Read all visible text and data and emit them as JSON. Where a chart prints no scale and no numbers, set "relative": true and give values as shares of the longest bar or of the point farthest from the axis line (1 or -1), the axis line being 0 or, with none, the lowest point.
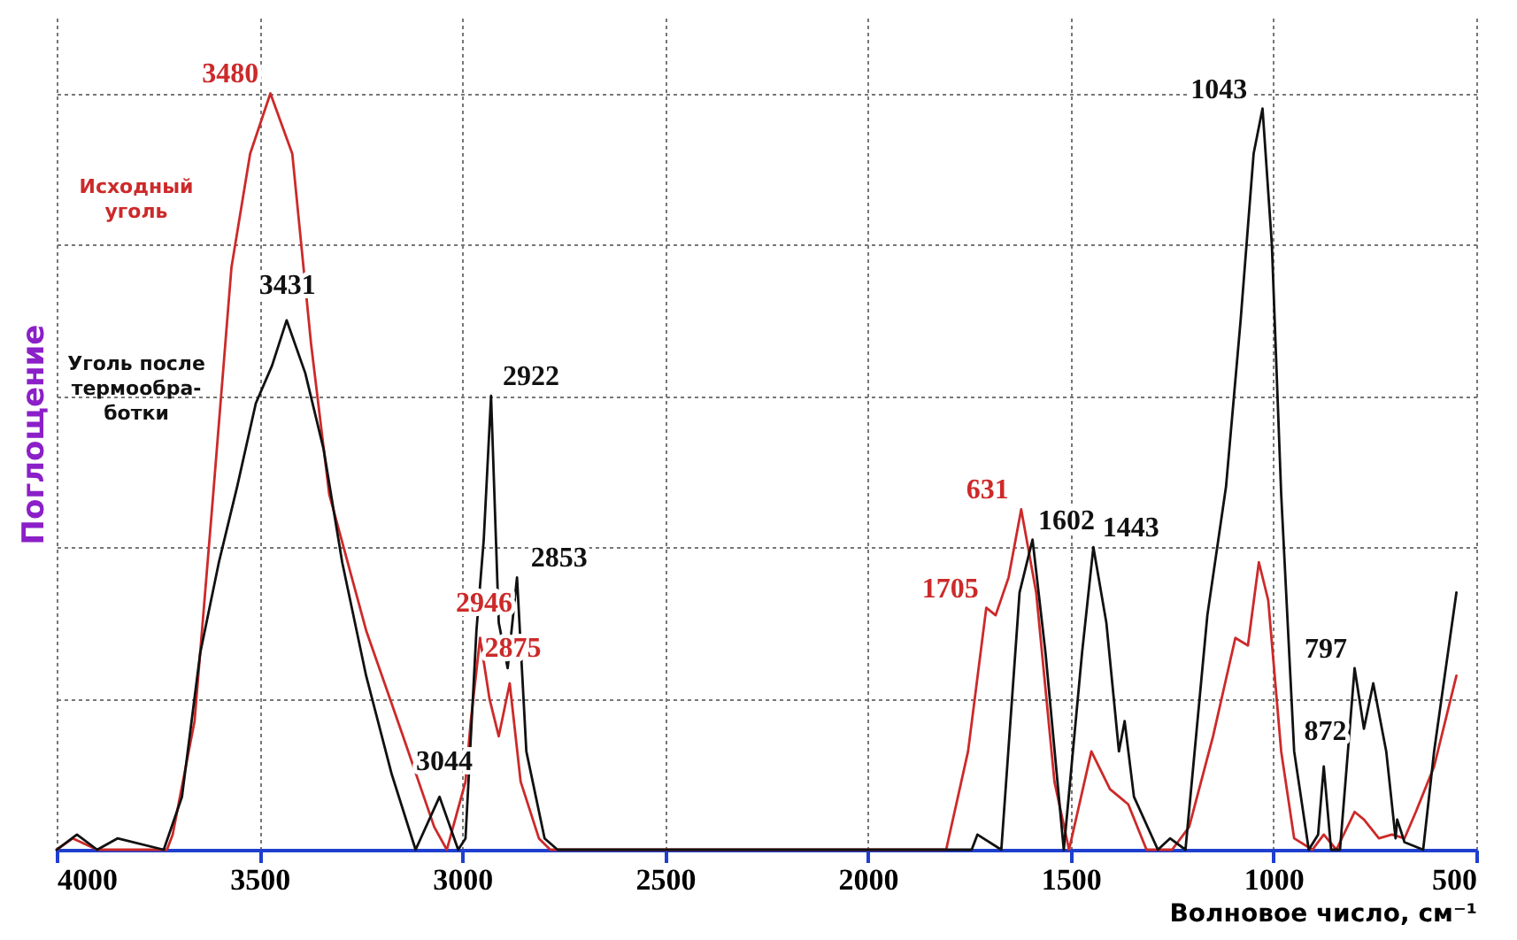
{
  "chart_data": {
    "type": "line",
    "relative": true,
    "xlabel": "Волновое число, см⁻¹",
    "ylabel": "Поглощение",
    "xlim": [
      4000,
      500
    ],
    "xticks": [
      4000,
      3500,
      3000,
      2500,
      2000,
      1500,
      1000,
      500
    ],
    "grid": true,
    "legend": false,
    "series": [
      {
        "name": "Исходный уголь",
        "color": "#cc2a2a",
        "x": [
          4000,
          3960,
          3900,
          3728,
          3714,
          3660,
          3614,
          3569,
          3523,
          3473,
          3419,
          3373,
          3328,
          3237,
          3146,
          3069,
          3038,
          2992,
          2979,
          2956,
          2933,
          2910,
          2883,
          2856,
          2811,
          2783,
          2500,
          1807,
          1753,
          1708,
          1685,
          1653,
          1622,
          1585,
          1540,
          1504,
          1449,
          1403,
          1358,
          1313,
          1250,
          1208,
          1149,
          1094,
          1063,
          1036,
          1013,
          981,
          949,
          904,
          876,
          845,
          800,
          777,
          740,
          708,
          677,
          649,
          604,
          549
        ],
        "values": [
          0,
          0.015,
          0,
          0,
          0.02,
          0.17,
          0.47,
          0.77,
          0.92,
          1.0,
          0.92,
          0.67,
          0.47,
          0.29,
          0.15,
          0.03,
          0,
          0.09,
          0.17,
          0.28,
          0.2,
          0.15,
          0.22,
          0.09,
          0.015,
          0,
          0,
          0,
          0.13,
          0.32,
          0.31,
          0.36,
          0.45,
          0.34,
          0.09,
          0,
          0.13,
          0.08,
          0.06,
          0,
          0,
          0.03,
          0.15,
          0.28,
          0.27,
          0.38,
          0.33,
          0.13,
          0.015,
          0,
          0.02,
          0,
          0.05,
          0.04,
          0.015,
          0.02,
          0.015,
          0.05,
          0.11,
          0.23
        ]
      },
      {
        "name": "Уголь после термообра-ботки",
        "color": "#111111",
        "x": [
          4000,
          3950,
          3900,
          3850,
          3736,
          3691,
          3646,
          3600,
          3555,
          3509,
          3469,
          3433,
          3387,
          3342,
          3296,
          3237,
          3174,
          3115,
          3056,
          3010,
          2992,
          2965,
          2947,
          2929,
          2910,
          2888,
          2865,
          2842,
          2797,
          2765,
          1744,
          1730,
          1671,
          1626,
          1594,
          1562,
          1517,
          1472,
          1444,
          1412,
          1381,
          1367,
          1344,
          1285,
          1255,
          1217,
          1163,
          1117,
          1081,
          1049,
          1027,
          1004,
          981,
          949,
          913,
          890,
          876,
          858,
          836,
          800,
          777,
          754,
          722,
          699,
          695,
          677,
          631,
          604,
          549
        ],
        "values": [
          0,
          0.02,
          0,
          0.015,
          0,
          0.07,
          0.26,
          0.38,
          0.48,
          0.59,
          0.64,
          0.7,
          0.63,
          0.53,
          0.38,
          0.23,
          0.1,
          0,
          0.07,
          0,
          0.015,
          0.29,
          0.41,
          0.6,
          0.3,
          0.24,
          0.36,
          0.13,
          0.015,
          0,
          0,
          0.02,
          0,
          0.34,
          0.41,
          0.26,
          0,
          0.26,
          0.4,
          0.3,
          0.13,
          0.17,
          0.07,
          0,
          0.015,
          0,
          0.31,
          0.48,
          0.7,
          0.92,
          0.98,
          0.8,
          0.47,
          0.13,
          0,
          0.02,
          0.11,
          0,
          0,
          0.24,
          0.16,
          0.22,
          0.13,
          0.015,
          0.04,
          0.01,
          0,
          0.13,
          0.34
        ]
      }
    ],
    "annotations": [
      {
        "text": "3480",
        "x": 3480,
        "y": 1.0
      },
      {
        "text": "3431",
        "x": 3431,
        "y": 0.7
      },
      {
        "text": "3044",
        "x": 3044,
        "y": 0.07
      },
      {
        "text": "2946",
        "x": 2946,
        "y": 0.28
      },
      {
        "text": "2922",
        "x": 2922,
        "y": 0.6
      },
      {
        "text": "2875",
        "x": 2875,
        "y": 0.22
      },
      {
        "text": "2853",
        "x": 2853,
        "y": 0.36
      },
      {
        "text": "1705",
        "x": 1705,
        "y": 0.32
      },
      {
        "text": "631",
        "x": 1631,
        "y": 0.45
      },
      {
        "text": "1602",
        "x": 1602,
        "y": 0.41
      },
      {
        "text": "1443",
        "x": 1443,
        "y": 0.4
      },
      {
        "text": "1043",
        "x": 1043,
        "y": 0.98
      },
      {
        "text": "872",
        "x": 872,
        "y": 0.11
      },
      {
        "text": "797",
        "x": 797,
        "y": 0.24
      }
    ]
  }
}
